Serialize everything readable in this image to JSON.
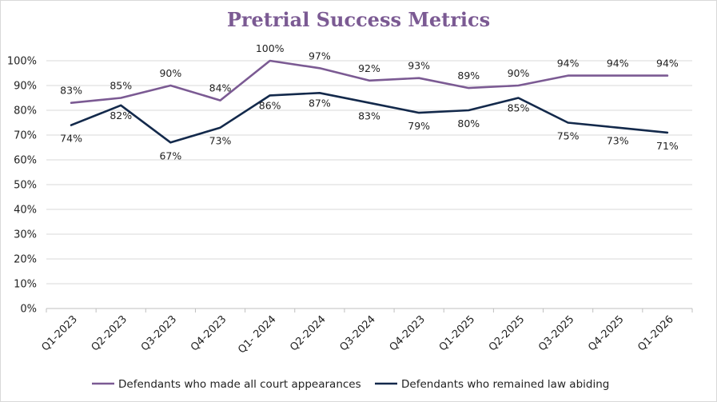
{
  "chart_data": {
    "type": "line",
    "title": "Pretrial Success Metrics",
    "categories": [
      "Q1-2023",
      "Q2-2023",
      "Q3-2023",
      "Q4-2023",
      "Q1- 2024",
      "Q2-2024",
      "Q3-2024",
      "Q4-2023",
      "Q1-2025",
      "Q2-2025",
      "Q3-2025",
      "Q4-2025",
      "Q1-2026"
    ],
    "series": [
      {
        "name": "Defendants who made all court appearances",
        "color": "#7b5a93",
        "values": [
          83,
          85,
          90,
          84,
          100,
          97,
          92,
          93,
          89,
          90,
          94,
          94,
          94
        ],
        "labels": [
          "83%",
          "85%",
          "90%",
          "84%",
          "100%",
          "97%",
          "92%",
          "93%",
          "89%",
          "90%",
          "94%",
          "94%",
          "94%"
        ]
      },
      {
        "name": "Defendants who remained law abiding",
        "color": "#13294b",
        "values": [
          74,
          82,
          67,
          73,
          86,
          87,
          83,
          79,
          80,
          85,
          75,
          73,
          71
        ],
        "labels": [
          "74%",
          "82%",
          "67%",
          "73%",
          "86%",
          "87%",
          "83%",
          "79%",
          "80%",
          "85%",
          "75%",
          "73%",
          "71%"
        ]
      }
    ],
    "ylim": [
      0,
      100
    ],
    "yticks": [
      "0%",
      "10%",
      "20%",
      "30%",
      "40%",
      "50%",
      "60%",
      "70%",
      "80%",
      "90%",
      "100%"
    ],
    "grid": true,
    "legend_position": "bottom"
  }
}
